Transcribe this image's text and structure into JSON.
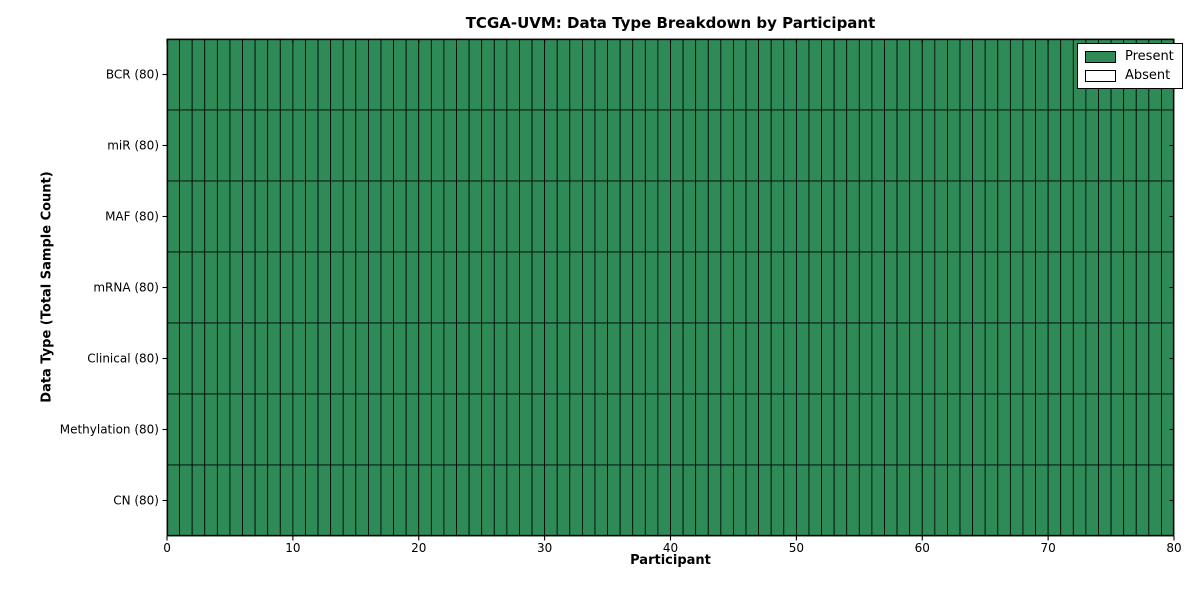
{
  "chart_data": {
    "type": "heatmap",
    "title": "TCGA-UVM: Data Type Breakdown by Participant",
    "xlabel": "Participant",
    "ylabel": "Data Type (Total Sample Count)",
    "x_range": [
      0,
      80
    ],
    "x_ticks": [
      0,
      10,
      20,
      30,
      40,
      50,
      60,
      70,
      80
    ],
    "n_participants": 80,
    "rows": [
      {
        "label": "BCR (80)",
        "data_type": "BCR",
        "total_samples": 80,
        "present_count": 80
      },
      {
        "label": "miR (80)",
        "data_type": "miR",
        "total_samples": 80,
        "present_count": 80
      },
      {
        "label": "MAF (80)",
        "data_type": "MAF",
        "total_samples": 80,
        "present_count": 80
      },
      {
        "label": "mRNA (80)",
        "data_type": "mRNA",
        "total_samples": 80,
        "present_count": 80
      },
      {
        "label": "Clinical (80)",
        "data_type": "Clinical",
        "total_samples": 80,
        "present_count": 80
      },
      {
        "label": "Methylation (80)",
        "data_type": "Methylation",
        "total_samples": 80,
        "present_count": 80
      },
      {
        "label": "CN (80)",
        "data_type": "CN",
        "total_samples": 80,
        "present_count": 80
      }
    ],
    "legend": {
      "position": "upper right",
      "entries": [
        {
          "label": "Present",
          "color": "#2e8b57"
        },
        {
          "label": "Absent",
          "color": "#ffffff"
        }
      ]
    },
    "colors": {
      "present": "#2e8b57",
      "absent": "#ffffff",
      "cell_edge": "#000000",
      "spine": "#000000",
      "background": "#ffffff"
    },
    "grid": "cell-borders"
  }
}
